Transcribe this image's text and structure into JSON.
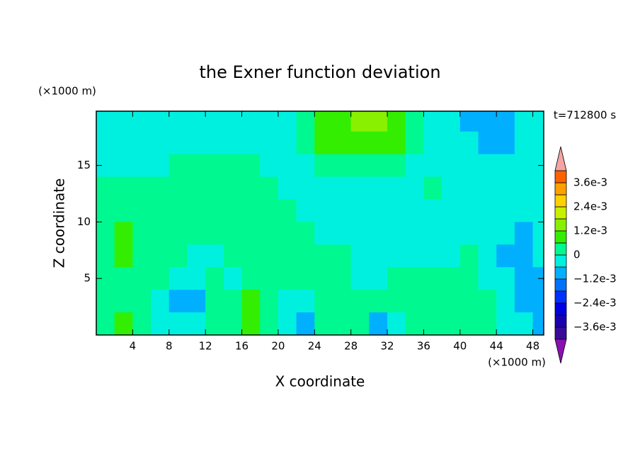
{
  "chart_data": {
    "type": "contour",
    "title": "the Exner function deviation",
    "xlabel": "X coordinate",
    "ylabel": "Z coordinate",
    "xunit": "(×1000 m)",
    "yunit": "(×1000 m)",
    "time_label": "t=712800 s",
    "xlim": [
      0,
      49.2
    ],
    "ylim": [
      0,
      19.8
    ],
    "xticks": [
      4,
      8,
      12,
      16,
      20,
      24,
      28,
      32,
      36,
      40,
      44,
      48
    ],
    "yticks": [
      5,
      10,
      15
    ],
    "x": [
      1,
      3,
      5,
      7,
      9,
      11,
      13,
      15,
      17,
      19,
      21,
      23,
      25,
      27,
      29,
      31,
      33,
      35,
      37,
      39,
      41,
      43,
      45,
      47,
      49
    ],
    "y": [
      19,
      17,
      15,
      13,
      11,
      9,
      7,
      5,
      3,
      1
    ],
    "z": [
      [
        -0.0003,
        -0.0003,
        -0.0003,
        -0.0003,
        -0.0003,
        -0.0003,
        -0.0003,
        -0.0003,
        -0.0003,
        -0.0003,
        -0.0003,
        0.0003,
        0.0009,
        0.0009,
        0.0015,
        0.0015,
        0.0009,
        0.0003,
        -0.0003,
        -0.0003,
        -0.0009,
        -0.0009,
        -0.0009,
        -0.0003,
        -0.0003
      ],
      [
        -0.0003,
        -0.0003,
        -0.0003,
        -0.0003,
        -0.0003,
        -0.0003,
        -0.0003,
        -0.0003,
        -0.0003,
        -0.0003,
        -0.0003,
        0.0003,
        0.0009,
        0.0009,
        0.0009,
        0.0009,
        0.0009,
        0.0003,
        -0.0003,
        -0.0003,
        -0.0003,
        -0.0009,
        -0.0009,
        -0.0003,
        -0.0003
      ],
      [
        -0.0003,
        -0.0003,
        -0.0003,
        -0.0003,
        0.0003,
        0.0003,
        0.0003,
        0.0003,
        0.0003,
        -0.0003,
        -0.0003,
        -0.0003,
        0.0003,
        0.0003,
        0.0003,
        0.0003,
        0.0003,
        -0.0003,
        -0.0003,
        -0.0003,
        -0.0003,
        -0.0003,
        -0.0003,
        -0.0003,
        -0.0003
      ],
      [
        0.0003,
        0.0003,
        0.0003,
        0.0003,
        0.0003,
        0.0003,
        0.0003,
        0.0003,
        0.0003,
        0.0003,
        -0.0003,
        -0.0003,
        -0.0003,
        -0.0003,
        -0.0003,
        -0.0003,
        -0.0003,
        -0.0003,
        0.0003,
        -0.0003,
        -0.0003,
        -0.0003,
        -0.0003,
        -0.0003,
        -0.0003
      ],
      [
        0.0003,
        0.0003,
        0.0003,
        0.0003,
        0.0003,
        0.0003,
        0.0003,
        0.0003,
        0.0003,
        0.0003,
        0.0003,
        -0.0003,
        -0.0003,
        -0.0003,
        -0.0003,
        -0.0003,
        -0.0003,
        -0.0003,
        -0.0003,
        -0.0003,
        -0.0003,
        -0.0003,
        -0.0003,
        -0.0003,
        -0.0003
      ],
      [
        0.0003,
        0.0009,
        0.0003,
        0.0003,
        0.0003,
        0.0003,
        0.0003,
        0.0003,
        0.0003,
        0.0003,
        0.0003,
        0.0003,
        -0.0003,
        -0.0003,
        -0.0003,
        -0.0003,
        -0.0003,
        -0.0003,
        -0.0003,
        -0.0003,
        -0.0003,
        -0.0003,
        -0.0003,
        -0.0009,
        -0.0003
      ],
      [
        0.0003,
        0.0009,
        0.0003,
        0.0003,
        0.0003,
        -0.0003,
        -0.0003,
        0.0003,
        0.0003,
        0.0003,
        0.0003,
        0.0003,
        0.0003,
        0.0003,
        -0.0003,
        -0.0003,
        -0.0003,
        -0.0003,
        -0.0003,
        -0.0003,
        0.0003,
        -0.0003,
        -0.0009,
        -0.0009,
        -0.0003
      ],
      [
        0.0003,
        0.0003,
        0.0003,
        0.0003,
        -0.0003,
        -0.0003,
        0.0003,
        -0.0003,
        0.0003,
        0.0003,
        0.0003,
        0.0003,
        0.0003,
        0.0003,
        -0.0003,
        -0.0003,
        0.0003,
        0.0003,
        0.0003,
        0.0003,
        0.0003,
        -0.0003,
        -0.0003,
        -0.0009,
        -0.0009
      ],
      [
        0.0003,
        0.0003,
        0.0003,
        -0.0003,
        -0.0009,
        -0.0009,
        0.0003,
        0.0003,
        0.0009,
        0.0003,
        -0.0003,
        -0.0003,
        0.0003,
        0.0003,
        0.0003,
        0.0003,
        0.0003,
        0.0003,
        0.0003,
        0.0003,
        0.0003,
        0.0003,
        -0.0003,
        -0.0009,
        -0.0009
      ],
      [
        0.0003,
        0.0009,
        0.0003,
        -0.0003,
        -0.0003,
        -0.0003,
        0.0003,
        0.0003,
        0.0009,
        0.0003,
        -0.0003,
        -0.0009,
        0.0003,
        0.0003,
        0.0003,
        -0.0009,
        -0.0003,
        0.0003,
        0.0003,
        0.0003,
        0.0003,
        0.0003,
        -0.0003,
        -0.0003,
        -0.0009
      ]
    ],
    "levels": [
      -0.0042,
      -0.0036,
      -0.003,
      -0.0024,
      -0.0018,
      -0.0012,
      -0.0006,
      0,
      0.0006,
      0.0012,
      0.0018,
      0.0024,
      0.003,
      0.0036,
      0.0042
    ],
    "colors": [
      "#3a0a9a",
      "#1a00b0",
      "#0000e0",
      "#0030ff",
      "#0070ff",
      "#00b0ff",
      "#00f0e0",
      "#00f890",
      "#33ee00",
      "#88f000",
      "#c8f000",
      "#ffd000",
      "#ffa000",
      "#ff6000"
    ],
    "over_color": "#f4a4a4",
    "under_color": "#8a10b0",
    "cticks": [
      {
        "value": 0.0036,
        "label": "3.6e-3"
      },
      {
        "value": 0.0024,
        "label": "2.4e-3"
      },
      {
        "value": 0.0012,
        "label": "1.2e-3"
      },
      0,
      {
        "value": -0.0012,
        "label": "−1.2e-3"
      },
      {
        "value": -0.0024,
        "label": "−2.4e-3"
      },
      {
        "value": -0.0036,
        "label": "−3.6e-3"
      }
    ]
  }
}
